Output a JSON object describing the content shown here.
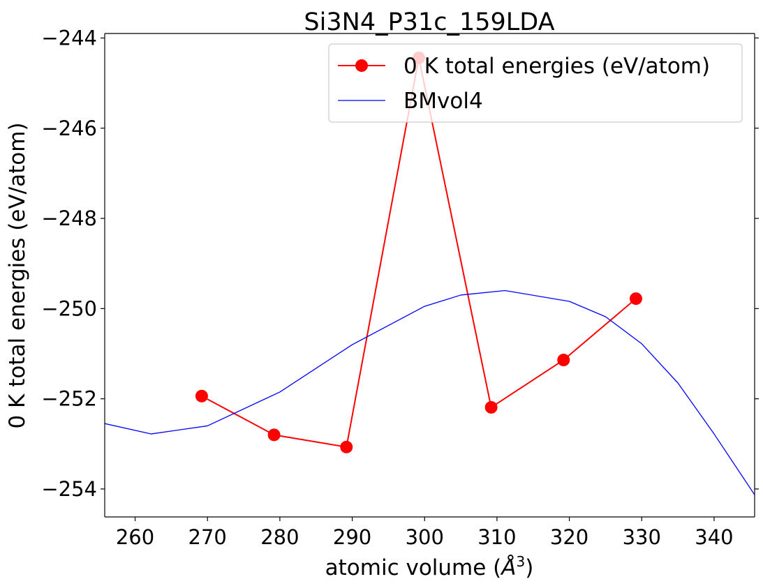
{
  "chart_data": {
    "type": "line",
    "title": "Si3N4_P31c_159LDA",
    "xlabel": "atomic volume (",
    "xlabel_unit_base": "Å",
    "xlabel_unit_sup": "3",
    "xlabel_end": ")",
    "ylabel": "0 K total energies (eV/atom)",
    "xlim": [
      255.8,
      345.6
    ],
    "ylim": [
      -254.62,
      -243.9
    ],
    "xticks": [
      260,
      270,
      280,
      290,
      300,
      310,
      320,
      330,
      340
    ],
    "yticks": [
      -254,
      -252,
      -250,
      -248,
      -246,
      -244
    ],
    "ytick_labels": [
      "−254",
      "−252",
      "−250",
      "−248",
      "−246",
      "−244"
    ],
    "grid": false,
    "legend_position": "top-right",
    "series": [
      {
        "name": "0 K total energies (eV/atom)",
        "style": "line-with-markers",
        "color": "#ff0000",
        "x": [
          269.2,
          279.2,
          289.2,
          299.2,
          309.2,
          319.2,
          329.2
        ],
        "y": [
          -251.94,
          -252.8,
          -253.07,
          -244.44,
          -252.19,
          -251.14,
          -249.78
        ]
      },
      {
        "name": "BMvol4",
        "style": "line",
        "color": "#0000ff",
        "x": [
          255.8,
          262.2,
          270,
          280,
          290,
          300,
          305,
          311.1,
          320,
          325,
          330,
          335,
          340,
          345.6
        ],
        "y": [
          -252.55,
          -252.78,
          -252.6,
          -251.85,
          -250.8,
          -249.95,
          -249.7,
          -249.6,
          -249.84,
          -250.18,
          -250.78,
          -251.65,
          -252.78,
          -254.13
        ]
      }
    ]
  }
}
